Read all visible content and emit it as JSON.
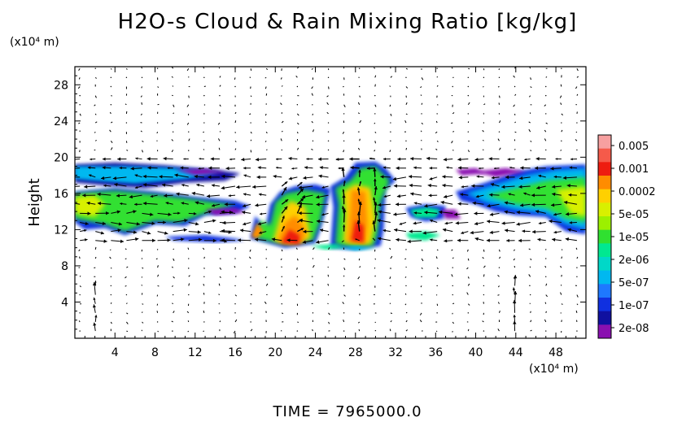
{
  "chart_data": {
    "type": "heatmap",
    "title": "H2O-s Cloud & Rain Mixing Ratio [kg/kg]",
    "ylabel": "Height",
    "y_unit": "(x10⁴ m)",
    "x_unit": "(x10⁴ m)",
    "footer": "TIME = 7965000.0",
    "xlim": [
      0,
      51
    ],
    "ylim": [
      0,
      30
    ],
    "xticks": [
      4,
      8,
      12,
      16,
      20,
      24,
      28,
      32,
      36,
      40,
      44,
      48
    ],
    "yticks": [
      4,
      8,
      12,
      16,
      20,
      24,
      28
    ],
    "colorbar": {
      "labels": [
        "0.005",
        "0.001",
        "0.0002",
        "5e-05",
        "1e-05",
        "2e-06",
        "5e-07",
        "1e-07",
        "2e-08"
      ],
      "colors": [
        "#f7a0a0",
        "#f55a4a",
        "#ee1c10",
        "#ff8c00",
        "#ffd000",
        "#d8f000",
        "#9cf000",
        "#30e030",
        "#00e890",
        "#00d8c8",
        "#00b8f0",
        "#1e78ff",
        "#1030e0",
        "#1010a0",
        "#8a10b0"
      ]
    },
    "cloud_regions": [
      {
        "x0": 0,
        "x1": 18,
        "y0": 10.5,
        "y1": 19.2,
        "level": "1e-05"
      },
      {
        "x0": 17.5,
        "x1": 25.5,
        "y0": 10,
        "y1": 17,
        "level": "0.001"
      },
      {
        "x0": 26,
        "x1": 32,
        "y0": 10,
        "y1": 19.5,
        "level": "0.001"
      },
      {
        "x0": 33,
        "x1": 36.5,
        "y0": 10.5,
        "y1": 14.5,
        "level": "1e-05"
      },
      {
        "x0": 38,
        "x1": 51,
        "y0": 11.5,
        "y1": 19.2,
        "level": "1e-05"
      }
    ]
  }
}
